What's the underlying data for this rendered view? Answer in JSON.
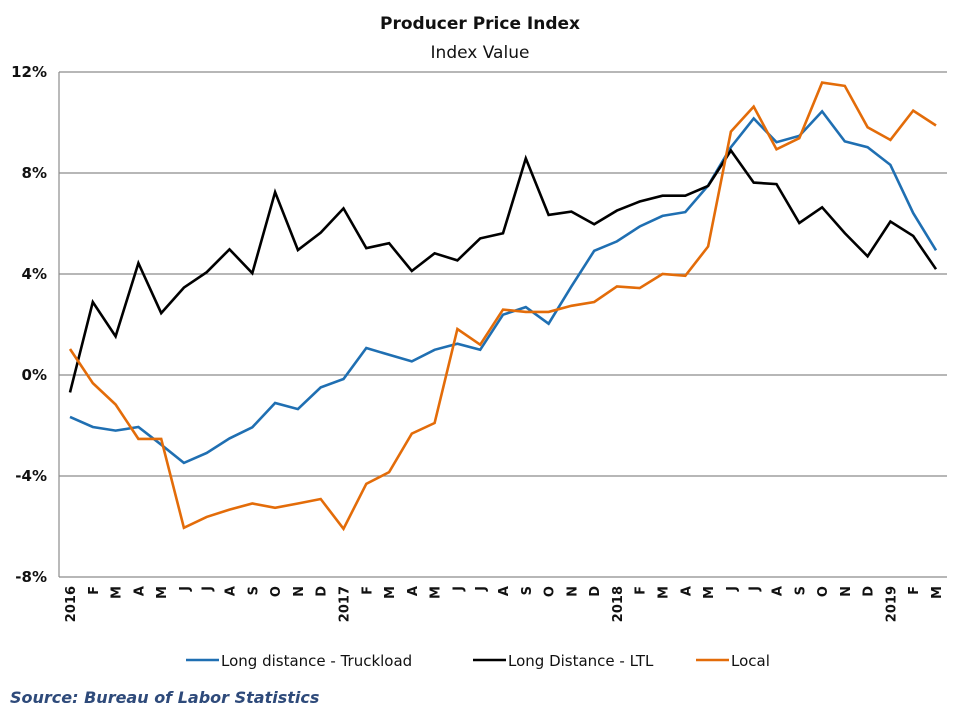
{
  "chart_data": {
    "type": "line",
    "title": "Producer Price Index",
    "subtitle": "Index Value",
    "xlabel": "",
    "ylabel": "",
    "ylim": [
      -8,
      12
    ],
    "yticks": [
      -8,
      -4,
      0,
      4,
      8,
      12
    ],
    "ytick_labels": [
      "-8%",
      "-4%",
      "0%",
      "4%",
      "8%",
      "12%"
    ],
    "grid": true,
    "legend_position": "bottom",
    "x": [
      "2016",
      "F",
      "M",
      "A",
      "M",
      "J",
      "J",
      "A",
      "S",
      "O",
      "N",
      "D",
      "2017",
      "F",
      "M",
      "A",
      "M",
      "J",
      "J",
      "A",
      "S",
      "O",
      "N",
      "D",
      "2018",
      "F",
      "M",
      "A",
      "M",
      "J",
      "J",
      "A",
      "S",
      "O",
      "N",
      "D",
      "2019",
      "F",
      "M"
    ],
    "series": [
      {
        "name": "Long distance - Truckload",
        "color": "#1f6fb2",
        "values": [
          -1.66,
          -2.06,
          -2.2,
          -2.06,
          -2.76,
          -3.48,
          -3.09,
          -2.51,
          -2.07,
          -1.11,
          -1.35,
          -0.49,
          -0.16,
          1.07,
          0.8,
          0.54,
          1.0,
          1.24,
          1.0,
          2.39,
          2.69,
          2.03,
          3.51,
          4.92,
          5.29,
          5.88,
          6.3,
          6.45,
          7.5,
          9.02,
          10.16,
          9.22,
          9.47,
          10.44,
          9.25,
          9.02,
          8.32,
          6.41,
          4.94
        ]
      },
      {
        "name": "Long Distance - LTL",
        "color": "#000000",
        "values": [
          -0.69,
          2.89,
          1.53,
          4.43,
          2.45,
          3.46,
          4.07,
          4.98,
          4.03,
          7.24,
          4.95,
          5.64,
          6.6,
          5.02,
          5.22,
          4.12,
          4.82,
          4.54,
          5.41,
          5.61,
          8.58,
          6.34,
          6.47,
          5.97,
          6.51,
          6.87,
          7.1,
          7.1,
          7.49,
          8.89,
          7.62,
          7.56,
          6.02,
          6.64,
          5.62,
          4.7,
          6.08,
          5.51,
          4.19
        ]
      },
      {
        "name": "Local",
        "color": "#e36c09",
        "values": [
          1.03,
          -0.32,
          -1.17,
          -2.53,
          -2.53,
          -6.05,
          -5.62,
          -5.33,
          -5.09,
          -5.26,
          -5.09,
          -4.91,
          -6.09,
          -4.31,
          -3.85,
          -2.32,
          -1.9,
          1.82,
          1.2,
          2.59,
          2.5,
          2.5,
          2.74,
          2.89,
          3.51,
          3.44,
          4.0,
          3.93,
          5.09,
          9.64,
          10.63,
          8.94,
          9.38,
          11.58,
          11.45,
          9.81,
          9.31,
          10.47,
          9.88
        ]
      }
    ]
  },
  "source": "Source: Bureau of Labor Statistics"
}
